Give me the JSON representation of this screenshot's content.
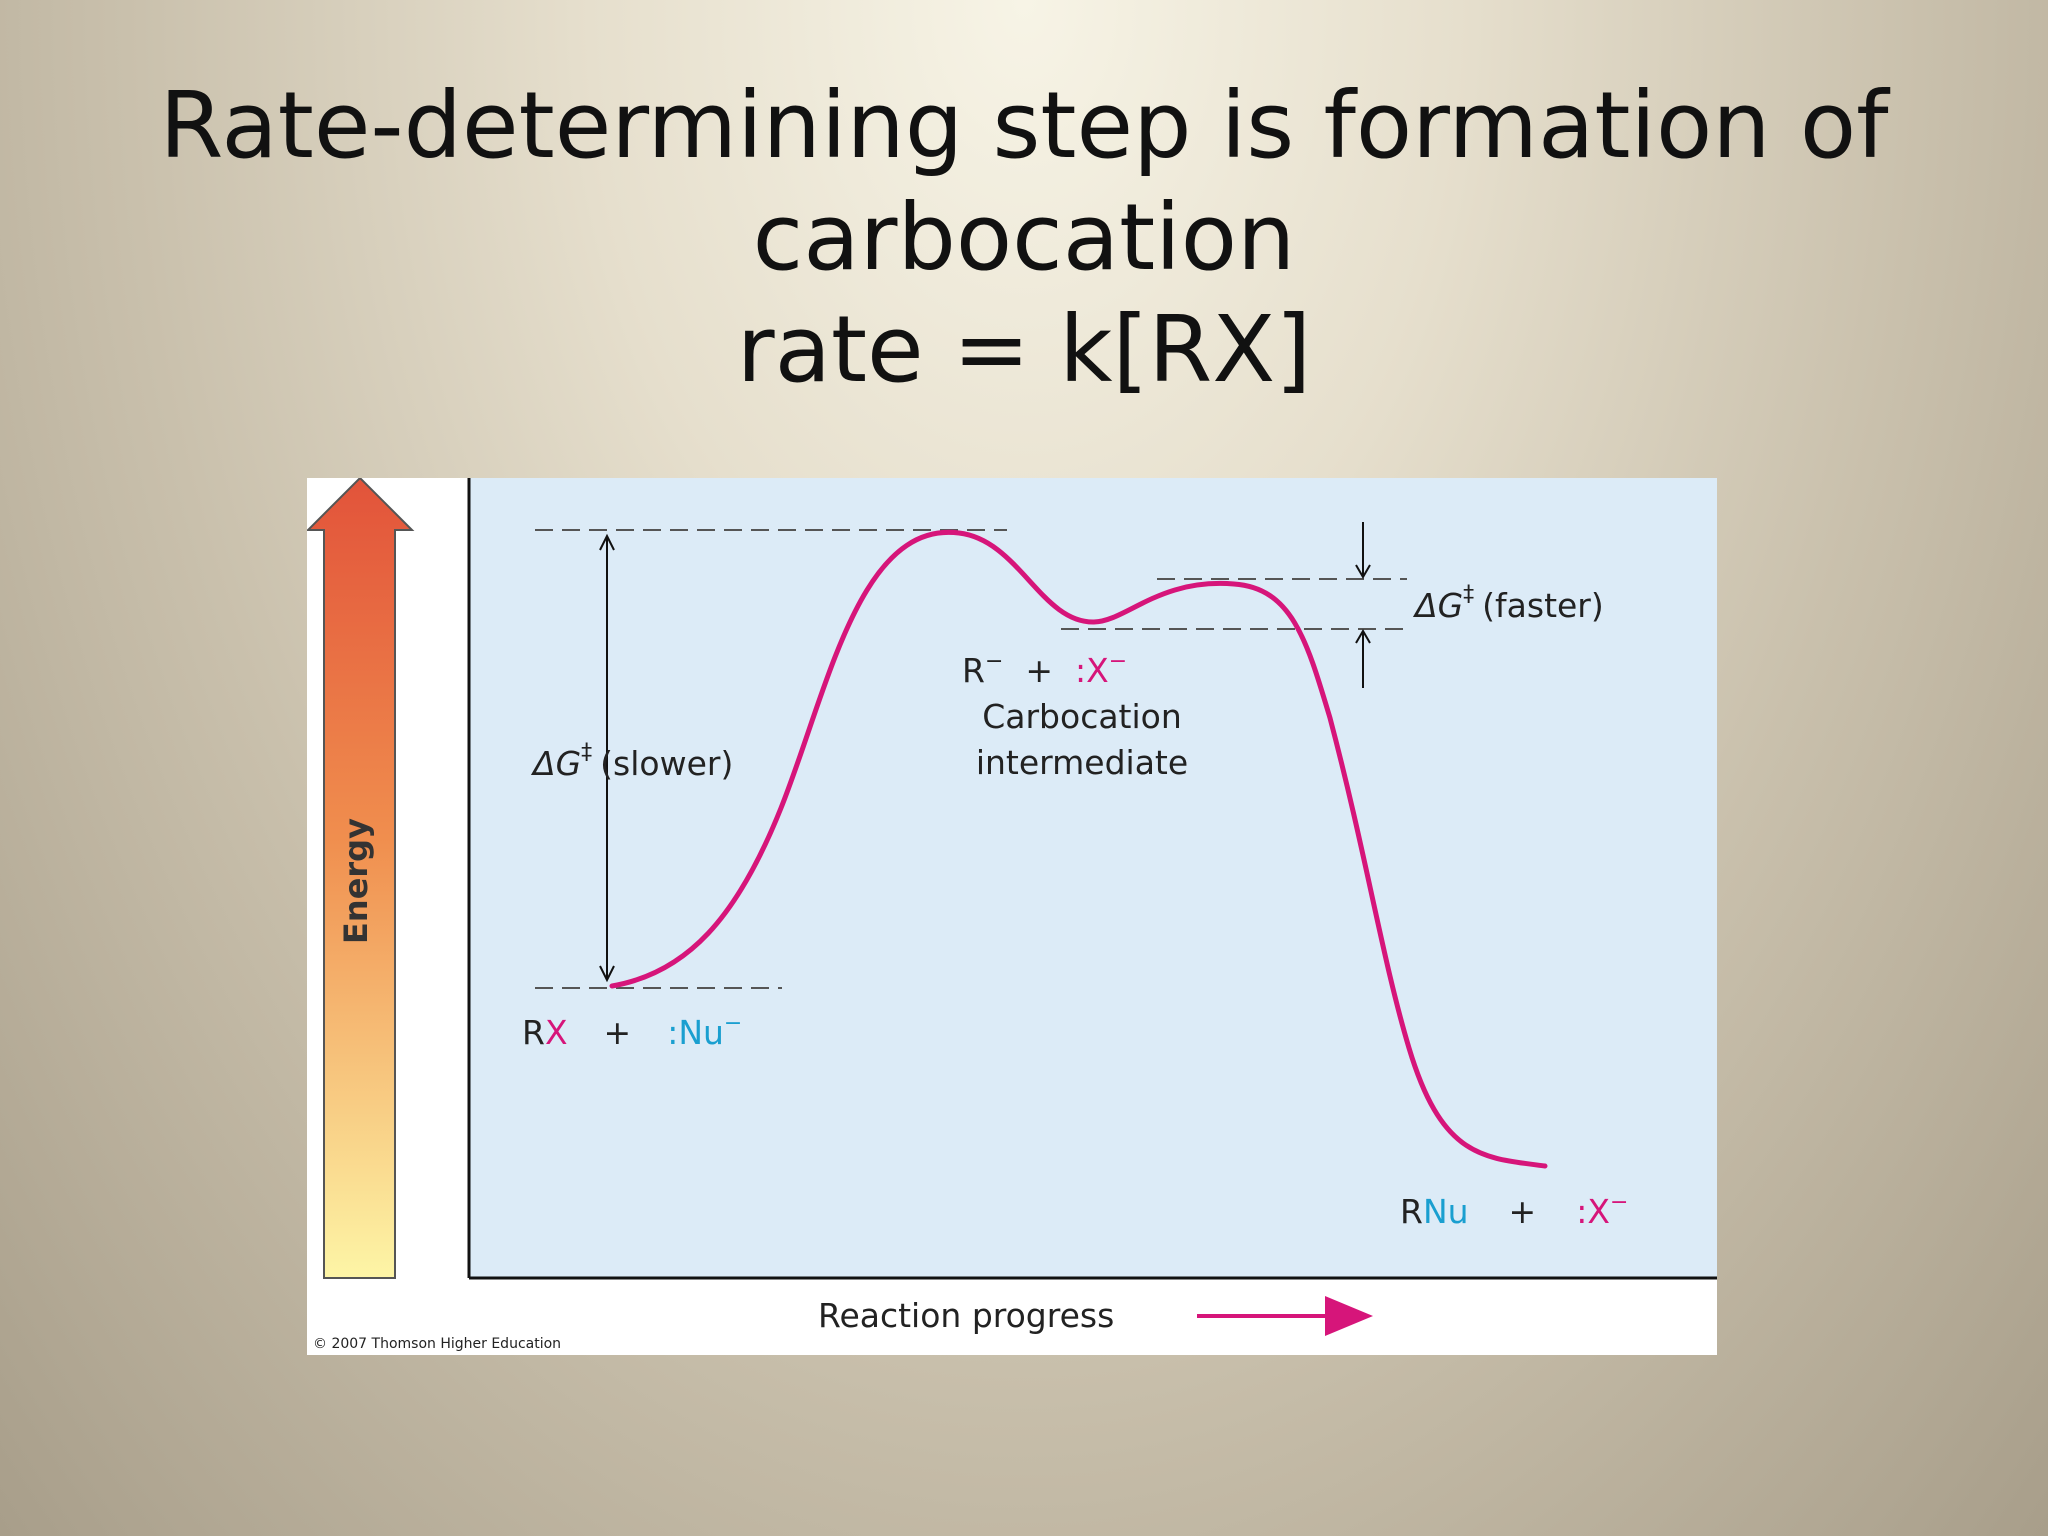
{
  "slide": {
    "title_line1": "Rate-determining step is formation of",
    "title_line2": "carbocation",
    "title_line3": "rate = k[RX]"
  },
  "diagram": {
    "energy_axis_label": "Energy",
    "x_axis_label": "Reaction progress",
    "dg_slower_symbol": "ΔG",
    "dg_slower_sup": "‡",
    "dg_slower_text": "(slower)",
    "dg_faster_symbol": "ΔG",
    "dg_faster_sup": "‡",
    "dg_faster_text": "(faster)",
    "reactant_r": "R",
    "reactant_x": "X",
    "reactant_plus": "+",
    "reactant_nu": ":Nu",
    "reactant_nu_charge": "−",
    "intermediate_r": "R",
    "intermediate_r_charge": "−",
    "intermediate_plus": "+",
    "intermediate_x": ":X",
    "intermediate_x_charge": "−",
    "intermediate_label_line1": "Carbocation",
    "intermediate_label_line2": "intermediate",
    "product_r": "R",
    "product_nu": "Nu",
    "product_plus": "+",
    "product_x": ":X",
    "product_x_charge": "−",
    "copyright": "© 2007 Thomson Higher Education",
    "colors": {
      "curve": "#d6157a",
      "nucleophile": "#1a9fd0",
      "leaving_group": "#d6157a",
      "plot_background": "#dcebf7",
      "arrow_top": "#e2533a",
      "arrow_bottom": "#fdf5a6"
    }
  }
}
